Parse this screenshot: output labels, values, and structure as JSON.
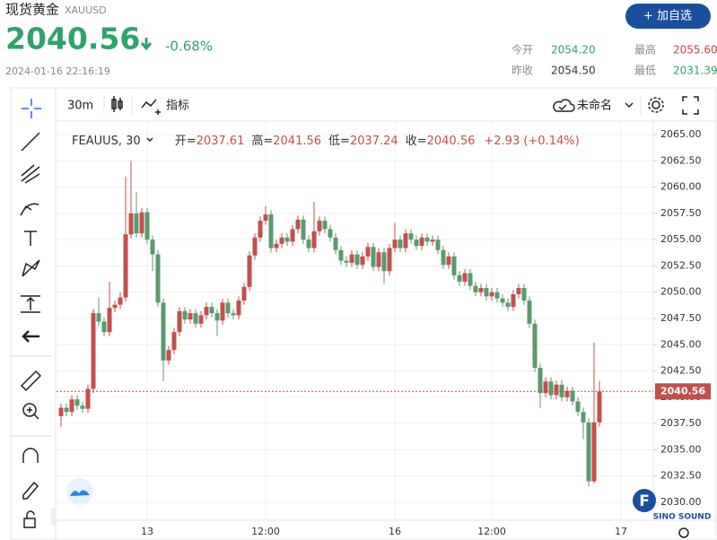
{
  "header": {
    "title": "现货黄金",
    "symbol": "XAUUSD",
    "change_pct": "-0.68%",
    "datetime": "2024-01-16 22:16:19",
    "button": "+ 加自选",
    "stats": [
      {
        "label": "今开",
        "value": "2054.20"
      },
      {
        "label": "最高",
        "value": "2055.60"
      },
      {
        "label": "昨收",
        "value": "2054.50"
      },
      {
        "label": "最低",
        "value": "2031.39"
      }
    ]
  },
  "toolbar": {
    "interval": "30m",
    "indicators": "指标",
    "layout": "未命名"
  },
  "legend": {
    "symbol": "FEAUUS, 30",
    "open": "开=",
    "high": "高=",
    "low": "低=",
    "close": "收=",
    "change": "+2.93 (+0.14%)"
  },
  "watermark": {
    "logo": "F",
    "text": "SINO SOUND"
  },
  "chart_data": {
    "type": "candlestick",
    "up_color": "#c2504b",
    "down_color": "#5b9a6c",
    "categories": [
      null,
      null,
      null,
      null,
      null,
      null,
      null,
      null,
      null,
      null,
      null,
      null,
      null,
      null,
      null,
      null,
      "13",
      null,
      null,
      null,
      null,
      null,
      null,
      null,
      null,
      null,
      null,
      null,
      null,
      null,
      null,
      null,
      null,
      null,
      null,
      null,
      null,
      null,
      "12:00",
      null,
      null,
      null,
      null,
      null,
      null,
      null,
      null,
      null,
      null,
      null,
      null,
      null,
      null,
      null,
      null,
      null,
      null,
      null,
      null,
      null,
      null,
      null,
      "16",
      null,
      null,
      null,
      null,
      null,
      null,
      null,
      null,
      null,
      null,
      null,
      null,
      null,
      null,
      null,
      null,
      null,
      "12:00",
      null,
      null,
      null,
      null,
      null,
      null,
      null,
      null,
      null,
      null,
      null,
      null,
      null,
      null,
      null,
      null,
      null,
      null,
      null,
      null,
      null,
      null,
      null,
      "17"
    ],
    "open": [
      2038.2,
      2039.0,
      2038.6,
      2039.8,
      2039.2,
      2038.9,
      2040.8,
      2048.0,
      2047.2,
      2046.2,
      2048.5,
      2048.8,
      2049.5,
      2055.5,
      2057.5,
      2055.6,
      2057.6,
      2055.0,
      2053.6,
      2049.0,
      2043.5,
      2044.5,
      2046.2,
      2048.2,
      2047.4,
      2048.0,
      2047.0,
      2047.8,
      2048.6,
      2048.0,
      2047.3,
      2049.0,
      2048.0,
      2047.8,
      2049.2,
      2050.5,
      2053.5,
      2055.2,
      2056.8,
      2057.4,
      2054.2,
      2054.6,
      2055.2,
      2054.8,
      2056.0,
      2056.9,
      2055.0,
      2054.2,
      2055.8,
      2056.8,
      2056.0,
      2055.2,
      2054.0,
      2053.0,
      2052.8,
      2053.6,
      2052.6,
      2053.4,
      2054.3,
      2052.4,
      2053.8,
      2052.0,
      2054.2,
      2055.0,
      2054.2,
      2055.6,
      2055.0,
      2054.4,
      2055.2,
      2054.8,
      2055.0,
      2054.0,
      2052.6,
      2053.4,
      2051.6,
      2051.0,
      2051.8,
      2050.6,
      2050.0,
      2050.4,
      2049.6,
      2050.0,
      2049.4,
      2049.0,
      2048.6,
      2049.8,
      2050.4,
      2049.2,
      2047.0,
      2042.8,
      2040.4,
      2041.5,
      2040.2,
      2041.2,
      2040.0,
      2040.6,
      2039.6,
      2038.6,
      2037.6,
      2032.0,
      2037.61,
      null,
      null,
      null,
      null
    ],
    "high": [
      2039.4,
      2039.4,
      2040.2,
      2040.2,
      2039.6,
      2041.2,
      2048.4,
      2049.5,
      2047.6,
      2051.0,
      2049.2,
      2050.0,
      2061.0,
      2062.5,
      2059.5,
      2058.0,
      2058.0,
      2055.4,
      2054.0,
      2049.4,
      2044.9,
      2046.6,
      2048.6,
      2048.6,
      2048.4,
      2048.4,
      2048.2,
      2049.0,
      2049.0,
      2048.4,
      2049.4,
      2049.4,
      2048.4,
      2049.6,
      2050.9,
      2053.9,
      2055.6,
      2057.2,
      2058.2,
      2057.8,
      2055.0,
      2055.6,
      2055.6,
      2056.4,
      2057.3,
      2057.3,
      2055.4,
      2058.6,
      2057.2,
      2057.2,
      2056.4,
      2055.6,
      2054.4,
      2053.4,
      2054.0,
      2054.0,
      2053.8,
      2054.7,
      2054.7,
      2054.2,
      2054.2,
      2054.6,
      2056.6,
      2055.4,
      2056.0,
      2056.0,
      2055.4,
      2055.6,
      2055.6,
      2055.4,
      2055.4,
      2054.4,
      2053.8,
      2053.8,
      2052.0,
      2052.2,
      2052.2,
      2051.0,
      2050.8,
      2050.8,
      2050.4,
      2050.4,
      2049.8,
      2049.4,
      2050.2,
      2050.8,
      2050.8,
      2049.6,
      2047.4,
      2043.2,
      2041.9,
      2041.9,
      2041.6,
      2041.6,
      2041.0,
      2041.0,
      2040.0,
      2039.0,
      2038.0,
      2045.2,
      2041.56,
      null,
      null,
      null,
      null
    ],
    "low": [
      2037.2,
      2038.2,
      2038.2,
      2038.8,
      2038.5,
      2038.5,
      2040.4,
      2046.8,
      2045.8,
      2045.8,
      2048.1,
      2048.4,
      2049.1,
      2055.1,
      2055.2,
      2055.2,
      2054.6,
      2052.0,
      2048.6,
      2041.5,
      2043.1,
      2044.1,
      2045.8,
      2047.0,
      2047.0,
      2046.6,
      2046.6,
      2047.4,
      2047.6,
      2045.8,
      2046.9,
      2047.6,
      2047.4,
      2047.4,
      2048.8,
      2050.1,
      2053.1,
      2054.8,
      2056.4,
      2053.8,
      2053.8,
      2054.2,
      2054.4,
      2054.4,
      2055.6,
      2054.6,
      2053.8,
      2053.8,
      2055.4,
      2055.6,
      2054.8,
      2053.6,
      2052.6,
      2052.4,
      2052.4,
      2052.2,
      2052.2,
      2053.0,
      2052.0,
      2052.0,
      2050.8,
      2051.6,
      2053.8,
      2053.8,
      2053.8,
      2054.6,
      2054.0,
      2054.0,
      2054.4,
      2054.4,
      2053.6,
      2052.2,
      2052.2,
      2051.2,
      2050.6,
      2050.6,
      2050.2,
      2049.6,
      2049.6,
      2049.2,
      2049.2,
      2049.0,
      2048.6,
      2048.2,
      2048.2,
      2049.4,
      2048.8,
      2046.6,
      2042.4,
      2039.0,
      2040.0,
      2039.8,
      2039.8,
      2039.6,
      2039.6,
      2039.2,
      2038.2,
      2036.0,
      2031.5,
      2031.8,
      2037.24,
      null,
      null,
      null,
      null
    ],
    "close": [
      2039.0,
      2038.6,
      2039.8,
      2039.2,
      2038.9,
      2040.8,
      2048.0,
      2047.2,
      2046.2,
      2048.5,
      2048.8,
      2049.5,
      2055.5,
      2057.5,
      2055.6,
      2057.6,
      2055.0,
      2053.6,
      2049.0,
      2043.5,
      2044.5,
      2046.2,
      2048.2,
      2047.4,
      2048.0,
      2047.0,
      2047.8,
      2048.6,
      2048.0,
      2047.3,
      2049.0,
      2048.0,
      2047.8,
      2049.2,
      2050.5,
      2053.5,
      2055.2,
      2056.8,
      2057.4,
      2054.2,
      2054.6,
      2055.2,
      2054.8,
      2056.0,
      2056.9,
      2055.0,
      2054.2,
      2055.8,
      2056.8,
      2056.0,
      2055.2,
      2054.0,
      2053.0,
      2052.8,
      2053.6,
      2052.6,
      2053.4,
      2054.3,
      2052.4,
      2053.8,
      2052.0,
      2054.2,
      2055.0,
      2054.2,
      2055.6,
      2055.0,
      2054.4,
      2055.2,
      2054.8,
      2055.0,
      2054.0,
      2052.6,
      2053.4,
      2051.6,
      2051.0,
      2051.8,
      2050.6,
      2050.0,
      2050.4,
      2049.6,
      2050.0,
      2049.4,
      2049.0,
      2048.6,
      2049.8,
      2050.4,
      2049.2,
      2047.0,
      2042.8,
      2040.4,
      2041.5,
      2040.2,
      2041.2,
      2040.0,
      2040.6,
      2039.6,
      2038.6,
      2037.6,
      2032.0,
      2037.61,
      2040.56,
      null,
      null,
      null,
      null
    ],
    "ylim": [
      2030,
      2065
    ],
    "yticks": [
      {
        "value": 2030,
        "label": "2030.00"
      },
      {
        "value": 2032.5,
        "label": "2032.50"
      },
      {
        "value": 2035,
        "label": "2035.00"
      },
      {
        "value": 2037.5,
        "label": "2037.50"
      },
      {
        "value": 2040,
        "label": "2040.00"
      },
      {
        "value": 2042.5,
        "label": "2042.50"
      },
      {
        "value": 2045,
        "label": "2045.00"
      },
      {
        "value": 2047.5,
        "label": "2047.50"
      },
      {
        "value": 2050,
        "label": "2050.00"
      },
      {
        "value": 2052.5,
        "label": "2052.50"
      },
      {
        "value": 2055,
        "label": "2055.00"
      },
      {
        "value": 2057.5,
        "label": "2057.50"
      },
      {
        "value": 2060,
        "label": "2060.00"
      },
      {
        "value": 2062.5,
        "label": "2062.50"
      },
      {
        "value": 2065,
        "label": "2065.00"
      }
    ],
    "grid": true
  }
}
